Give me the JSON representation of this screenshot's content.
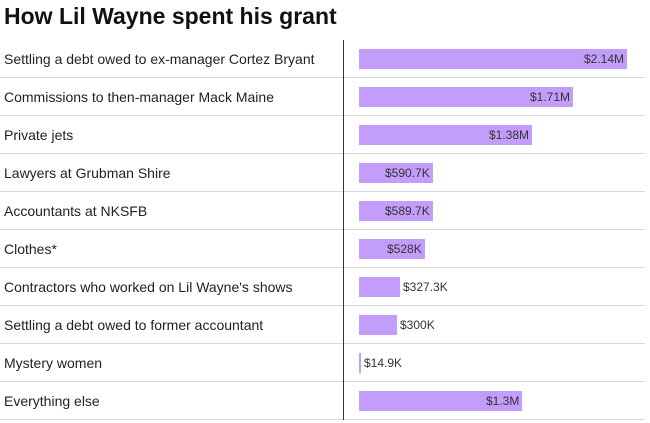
{
  "chart_data": {
    "type": "bar",
    "orientation": "horizontal",
    "title": "How Lil Wayne spent his grant",
    "xlabel": "",
    "ylabel": "",
    "categories": [
      "Settling a debt owed to ex-manager Cortez Bryant",
      "Commissions to then-manager Mack Maine",
      "Private jets",
      "Lawyers at Grubman Shire",
      "Accountants at NKSFB",
      "Clothes*",
      "Contractors who worked on Lil Wayne's shows",
      "Settling a debt owed to former accountant",
      "Mystery women",
      "Everything else"
    ],
    "values": [
      2140000,
      1710000,
      1380000,
      590700,
      589700,
      528000,
      327300,
      300000,
      14900,
      1300000
    ],
    "value_labels": [
      "$2.14M",
      "$1.71M",
      "$1.38M",
      "$590.7K",
      "$589.7K",
      "$528K",
      "$327.3K",
      "$300K",
      "$14.9K",
      "$1.3M"
    ],
    "xlim": [
      0,
      2140000
    ],
    "bar_color": "#c39dfa",
    "grid": false
  }
}
